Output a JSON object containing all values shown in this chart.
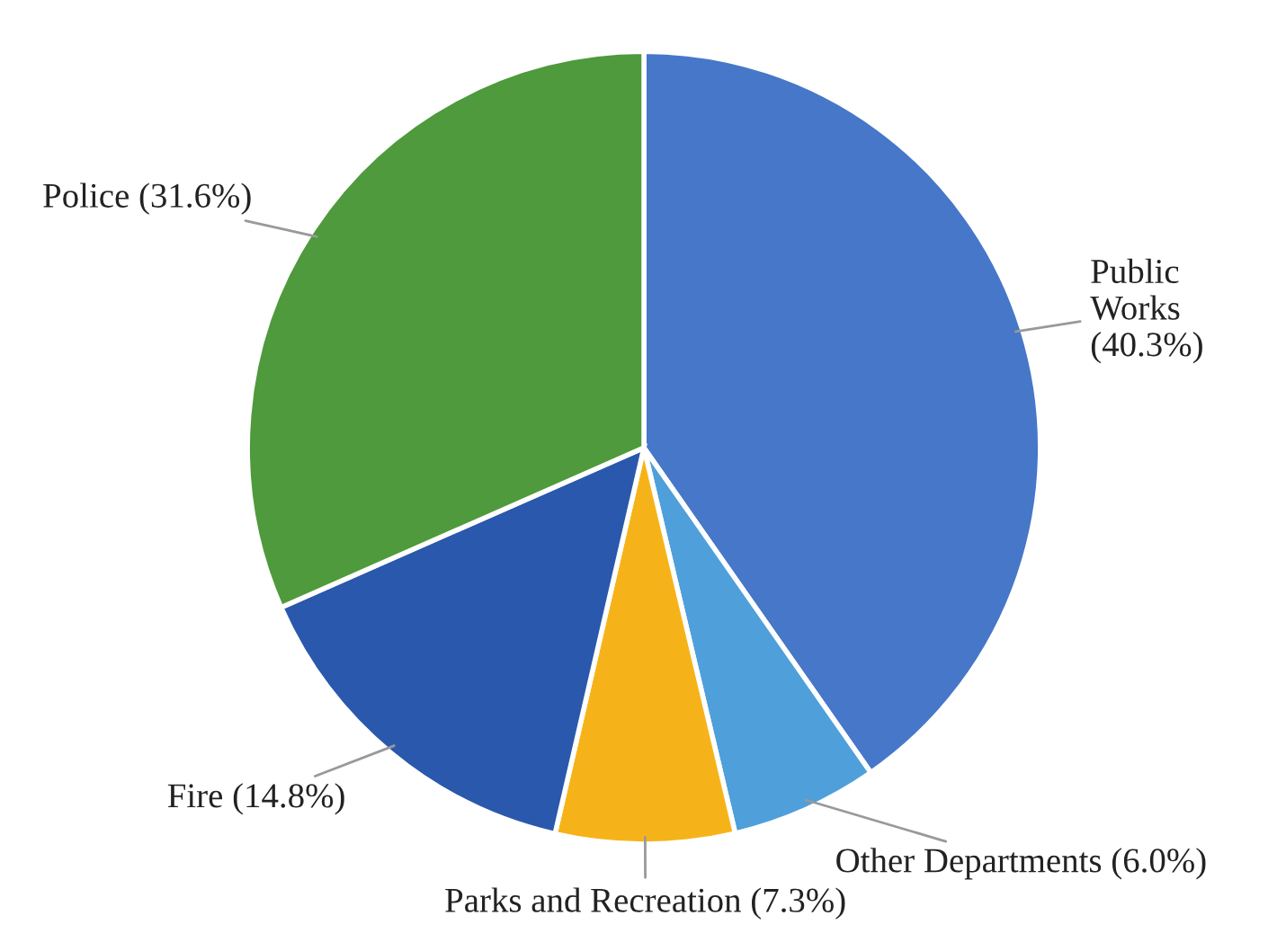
{
  "chart_data": {
    "type": "pie",
    "categories": [
      "Public Works (40.3%)",
      "Other Departments (6.0%)",
      "Parks and Recreation (7.3%)",
      "Fire (14.8%)",
      "Police (31.6%)"
    ],
    "values": [
      40.3,
      6.0,
      7.3,
      14.8,
      31.6
    ],
    "colors": [
      "#4677c8",
      "#4f9fdb",
      "#f6b319",
      "#2a58ad",
      "#4e9a3c"
    ],
    "legend": false
  }
}
